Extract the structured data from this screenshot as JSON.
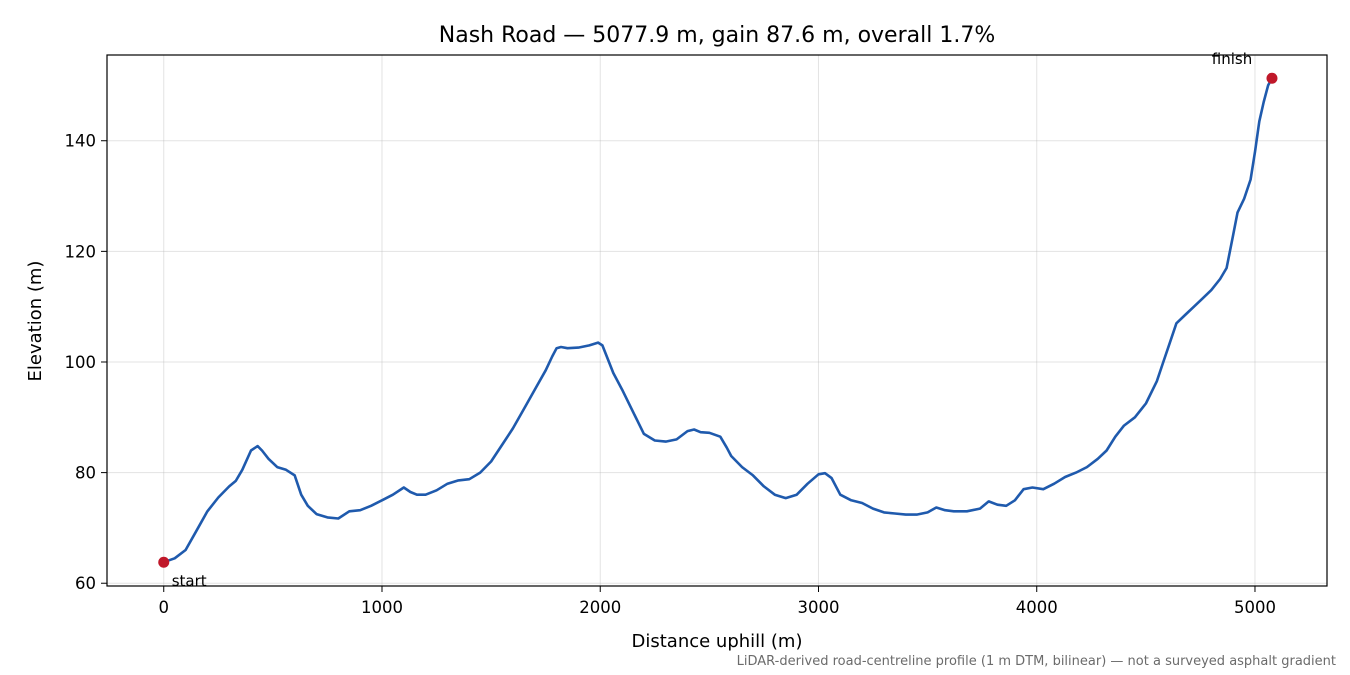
{
  "chart_data": {
    "type": "line",
    "title": "Nash Road — 5077.9 m, gain 87.6 m, overall 1.7%",
    "xlabel": "Distance uphill (m)",
    "ylabel": "Elevation (m)",
    "xlim": [
      -260,
      5330
    ],
    "ylim": [
      59.5,
      155.5
    ],
    "xticks": [
      0,
      1000,
      2000,
      3000,
      4000,
      5000
    ],
    "yticks": [
      60,
      80,
      100,
      120,
      140
    ],
    "grid": true,
    "line_color": "#1f5aad",
    "marker_color": "#c0182a",
    "series": [
      {
        "x": [
          0,
          50,
          100,
          150,
          200,
          250,
          300,
          330,
          360,
          400,
          430,
          450,
          480,
          520,
          560,
          600,
          630,
          660,
          700,
          750,
          800,
          850,
          900,
          950,
          1000,
          1050,
          1100,
          1130,
          1160,
          1200,
          1250,
          1300,
          1350,
          1400,
          1450,
          1500,
          1550,
          1600,
          1650,
          1700,
          1750,
          1780,
          1800,
          1820,
          1850,
          1900,
          1950,
          1990,
          2010,
          2030,
          2060,
          2100,
          2150,
          2200,
          2250,
          2300,
          2350,
          2400,
          2430,
          2460,
          2500,
          2550,
          2580,
          2600,
          2650,
          2700,
          2750,
          2800,
          2850,
          2900,
          2950,
          3000,
          3030,
          3060,
          3100,
          3150,
          3200,
          3250,
          3300,
          3350,
          3400,
          3450,
          3500,
          3540,
          3580,
          3620,
          3680,
          3740,
          3780,
          3820,
          3860,
          3900,
          3940,
          3980,
          4030,
          4080,
          4130,
          4180,
          4230,
          4280,
          4320,
          4360,
          4400,
          4450,
          4500,
          4550,
          4580,
          4610,
          4640,
          4680,
          4720,
          4760,
          4800,
          4840,
          4870,
          4900,
          4920,
          4950,
          4980,
          5000,
          5020,
          5040,
          5060,
          5077.9
        ],
        "y": [
          63.8,
          64.5,
          66.0,
          69.5,
          73.0,
          75.5,
          77.5,
          78.5,
          80.5,
          84.0,
          84.8,
          84.0,
          82.5,
          81.0,
          80.5,
          79.5,
          76.0,
          74.0,
          72.5,
          71.9,
          71.7,
          73.0,
          73.2,
          74.0,
          75.0,
          76.0,
          77.3,
          76.5,
          76.0,
          76.0,
          76.8,
          78.0,
          78.6,
          78.8,
          80.0,
          82.0,
          85.0,
          88.0,
          91.5,
          95.0,
          98.5,
          101.0,
          102.5,
          102.7,
          102.5,
          102.6,
          103.0,
          103.5,
          103.0,
          101.0,
          98.0,
          95.0,
          91.0,
          87.0,
          85.8,
          85.6,
          86.0,
          87.5,
          87.8,
          87.3,
          87.2,
          86.5,
          84.5,
          83.0,
          81.0,
          79.5,
          77.5,
          76.0,
          75.4,
          76.0,
          78.0,
          79.7,
          79.9,
          79.0,
          76.0,
          75.0,
          74.5,
          73.5,
          72.8,
          72.6,
          72.4,
          72.4,
          72.8,
          73.7,
          73.2,
          73.0,
          73.0,
          73.5,
          74.8,
          74.2,
          74.0,
          75.0,
          77.0,
          77.3,
          77.0,
          78.0,
          79.2,
          80.0,
          81.0,
          82.5,
          84.0,
          86.5,
          88.5,
          90.0,
          92.5,
          96.5,
          100.0,
          103.5,
          107.0,
          108.5,
          110.0,
          111.5,
          113.0,
          115.0,
          117.0,
          123.0,
          127.0,
          129.5,
          133.0,
          138.0,
          143.5,
          147.0,
          150.0,
          151.3
        ]
      }
    ],
    "annotations": [
      {
        "text": "start",
        "x": 0,
        "y": 63.8
      },
      {
        "text": "finish",
        "x": 5077.9,
        "y": 151.3
      }
    ],
    "footnote": "LiDAR-derived road-centreline profile (1 m DTM, bilinear) — not a surveyed asphalt gradient"
  }
}
